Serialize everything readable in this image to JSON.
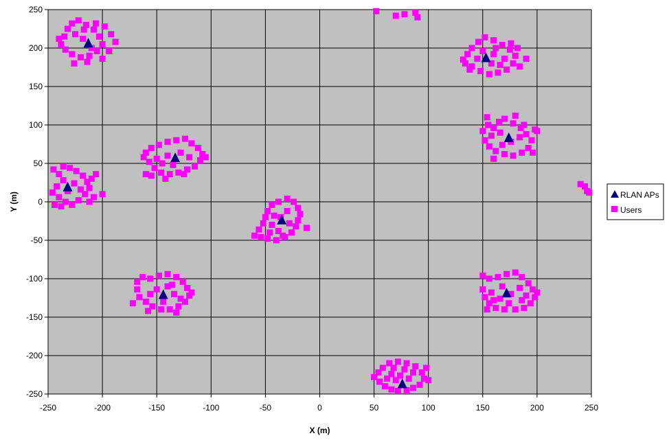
{
  "chart_data": {
    "type": "scatter",
    "title": "",
    "xlabel": "X (m)",
    "ylabel": "Y (m)",
    "xlim": [
      -250,
      250
    ],
    "ylim": [
      -250,
      250
    ],
    "x_ticks": [
      -250,
      -200,
      -150,
      -100,
      -50,
      0,
      50,
      100,
      150,
      200,
      250
    ],
    "y_ticks": [
      -250,
      -200,
      -150,
      -100,
      -50,
      0,
      50,
      100,
      150,
      200,
      250
    ],
    "grid": true,
    "plot_background": "#c0c0c0",
    "legend_position": "right",
    "series": [
      {
        "name": "RLAN APs",
        "marker": "triangle",
        "color": "#000080",
        "points": [
          [
            -213,
            206
          ],
          [
            153,
            187
          ],
          [
            174,
            83
          ],
          [
            -133,
            57
          ],
          [
            -232,
            19
          ],
          [
            -35,
            -24
          ],
          [
            -144,
            -121
          ],
          [
            172,
            -119
          ],
          [
            76,
            -237
          ]
        ]
      },
      {
        "name": "Users",
        "marker": "square",
        "color": "#ff00ff",
        "points": [
          [
            -238,
            205
          ],
          [
            -235,
            215
          ],
          [
            -232,
            225
          ],
          [
            -228,
            232
          ],
          [
            -222,
            236
          ],
          [
            -215,
            230
          ],
          [
            -208,
            224
          ],
          [
            -203,
            215
          ],
          [
            -200,
            205
          ],
          [
            -205,
            196
          ],
          [
            -212,
            190
          ],
          [
            -220,
            188
          ],
          [
            -228,
            192
          ],
          [
            -234,
            198
          ],
          [
            -225,
            218
          ],
          [
            -218,
            212
          ],
          [
            -210,
            200
          ],
          [
            -198,
            228
          ],
          [
            -192,
            218
          ],
          [
            -188,
            208
          ],
          [
            -194,
            196
          ],
          [
            -200,
            186
          ],
          [
            -214,
            182
          ],
          [
            -226,
            180
          ],
          [
            -240,
            212
          ],
          [
            -217,
            224
          ],
          [
            -206,
            232
          ],
          [
            52,
            248
          ],
          [
            70,
            242
          ],
          [
            88,
            246
          ],
          [
            90,
            240
          ],
          [
            78,
            244
          ],
          [
            132,
            185
          ],
          [
            136,
            192
          ],
          [
            140,
            200
          ],
          [
            146,
            208
          ],
          [
            152,
            214
          ],
          [
            160,
            210
          ],
          [
            168,
            204
          ],
          [
            175,
            198
          ],
          [
            180,
            190
          ],
          [
            178,
            180
          ],
          [
            172,
            172
          ],
          [
            164,
            168
          ],
          [
            156,
            166
          ],
          [
            148,
            170
          ],
          [
            140,
            176
          ],
          [
            134,
            180
          ],
          [
            150,
            196
          ],
          [
            160,
            192
          ],
          [
            170,
            186
          ],
          [
            158,
            180
          ],
          [
            145,
            186
          ],
          [
            182,
            200
          ],
          [
            176,
            206
          ],
          [
            138,
            172
          ],
          [
            190,
            186
          ],
          [
            184,
            176
          ],
          [
            162,
            200
          ],
          [
            166,
            178
          ],
          [
            150,
            92
          ],
          [
            155,
            100
          ],
          [
            160,
            96
          ],
          [
            165,
            104
          ],
          [
            170,
            108
          ],
          [
            178,
            102
          ],
          [
            185,
            96
          ],
          [
            190,
            88
          ],
          [
            195,
            80
          ],
          [
            192,
            70
          ],
          [
            186,
            64
          ],
          [
            178,
            60
          ],
          [
            170,
            62
          ],
          [
            162,
            66
          ],
          [
            156,
            72
          ],
          [
            152,
            80
          ],
          [
            158,
            86
          ],
          [
            166,
            90
          ],
          [
            176,
            78
          ],
          [
            184,
            84
          ],
          [
            198,
            94
          ],
          [
            200,
            92
          ],
          [
            168,
            74
          ],
          [
            160,
            56
          ],
          [
            196,
            64
          ],
          [
            154,
            110
          ],
          [
            180,
            112
          ],
          [
            188,
            100
          ],
          [
            -160,
            64
          ],
          [
            -155,
            70
          ],
          [
            -148,
            74
          ],
          [
            -140,
            78
          ],
          [
            -132,
            80
          ],
          [
            -124,
            82
          ],
          [
            -118,
            76
          ],
          [
            -112,
            70
          ],
          [
            -108,
            62
          ],
          [
            -110,
            54
          ],
          [
            -115,
            46
          ],
          [
            -122,
            42
          ],
          [
            -130,
            38
          ],
          [
            -138,
            36
          ],
          [
            -146,
            38
          ],
          [
            -152,
            44
          ],
          [
            -157,
            52
          ],
          [
            -162,
            58
          ],
          [
            -150,
            56
          ],
          [
            -140,
            60
          ],
          [
            -128,
            64
          ],
          [
            -120,
            58
          ],
          [
            -135,
            48
          ],
          [
            -145,
            50
          ],
          [
            -160,
            36
          ],
          [
            -155,
            34
          ],
          [
            -142,
            30
          ],
          [
            -125,
            36
          ],
          [
            -105,
            58
          ],
          [
            -245,
            42
          ],
          [
            -240,
            36
          ],
          [
            -236,
            28
          ],
          [
            -242,
            20
          ],
          [
            -246,
            12
          ],
          [
            -240,
            6
          ],
          [
            -234,
            0
          ],
          [
            -228,
            -4
          ],
          [
            -222,
            2
          ],
          [
            -216,
            10
          ],
          [
            -212,
            18
          ],
          [
            -214,
            26
          ],
          [
            -218,
            34
          ],
          [
            -224,
            40
          ],
          [
            -230,
            44
          ],
          [
            -236,
            46
          ],
          [
            -226,
            24
          ],
          [
            -232,
            14
          ],
          [
            -220,
            16
          ],
          [
            -210,
            30
          ],
          [
            -206,
            36
          ],
          [
            -200,
            10
          ],
          [
            -244,
            -4
          ],
          [
            -238,
            -6
          ],
          [
            -212,
            0
          ],
          [
            -208,
            6
          ],
          [
            240,
            23
          ],
          [
            244,
            20
          ],
          [
            246,
            14
          ],
          [
            248,
            12
          ],
          [
            -60,
            -44
          ],
          [
            -56,
            -36
          ],
          [
            -52,
            -28
          ],
          [
            -50,
            -20
          ],
          [
            -48,
            -12
          ],
          [
            -44,
            -4
          ],
          [
            -38,
            0
          ],
          [
            -30,
            4
          ],
          [
            -24,
            0
          ],
          [
            -20,
            -8
          ],
          [
            -18,
            -16
          ],
          [
            -20,
            -24
          ],
          [
            -22,
            -32
          ],
          [
            -26,
            -40
          ],
          [
            -32,
            -46
          ],
          [
            -40,
            -50
          ],
          [
            -48,
            -48
          ],
          [
            -54,
            -46
          ],
          [
            -44,
            -30
          ],
          [
            -36,
            -20
          ],
          [
            -28,
            -28
          ],
          [
            -38,
            -38
          ],
          [
            -12,
            -34
          ],
          [
            -30,
            -12
          ],
          [
            -46,
            -40
          ],
          [
            -34,
            -44
          ],
          [
            -42,
            -18
          ],
          [
            -168,
            -104
          ],
          [
            -163,
            -98
          ],
          [
            -156,
            -100
          ],
          [
            -148,
            -96
          ],
          [
            -140,
            -94
          ],
          [
            -132,
            -98
          ],
          [
            -126,
            -104
          ],
          [
            -122,
            -112
          ],
          [
            -120,
            -122
          ],
          [
            -124,
            -130
          ],
          [
            -130,
            -136
          ],
          [
            -138,
            -140
          ],
          [
            -146,
            -140
          ],
          [
            -154,
            -136
          ],
          [
            -160,
            -130
          ],
          [
            -166,
            -124
          ],
          [
            -168,
            -114
          ],
          [
            -150,
            -114
          ],
          [
            -140,
            -110
          ],
          [
            -134,
            -120
          ],
          [
            -156,
            -120
          ],
          [
            -144,
            -130
          ],
          [
            -128,
            -126
          ],
          [
            -172,
            -132
          ],
          [
            -158,
            -142
          ],
          [
            -132,
            -144
          ],
          [
            -118,
            -118
          ],
          [
            -136,
            -108
          ],
          [
            150,
            -96
          ],
          [
            156,
            -100
          ],
          [
            164,
            -98
          ],
          [
            172,
            -94
          ],
          [
            180,
            -92
          ],
          [
            186,
            -98
          ],
          [
            192,
            -106
          ],
          [
            196,
            -114
          ],
          [
            198,
            -124
          ],
          [
            194,
            -132
          ],
          [
            188,
            -138
          ],
          [
            180,
            -140
          ],
          [
            170,
            -140
          ],
          [
            162,
            -138
          ],
          [
            156,
            -132
          ],
          [
            152,
            -124
          ],
          [
            150,
            -114
          ],
          [
            158,
            -118
          ],
          [
            168,
            -110
          ],
          [
            176,
            -120
          ],
          [
            184,
            -112
          ],
          [
            160,
            -128
          ],
          [
            174,
            -132
          ],
          [
            190,
            -122
          ],
          [
            200,
            -118
          ],
          [
            154,
            -140
          ],
          [
            166,
            -126
          ],
          [
            186,
            -128
          ],
          [
            50,
            -228
          ],
          [
            55,
            -234
          ],
          [
            60,
            -240
          ],
          [
            66,
            -244
          ],
          [
            72,
            -246
          ],
          [
            80,
            -245
          ],
          [
            86,
            -242
          ],
          [
            92,
            -238
          ],
          [
            96,
            -230
          ],
          [
            94,
            -222
          ],
          [
            88,
            -214
          ],
          [
            80,
            -210
          ],
          [
            72,
            -208
          ],
          [
            64,
            -210
          ],
          [
            58,
            -216
          ],
          [
            54,
            -222
          ],
          [
            66,
            -224
          ],
          [
            74,
            -226
          ],
          [
            82,
            -230
          ],
          [
            70,
            -232
          ],
          [
            86,
            -222
          ],
          [
            62,
            -230
          ],
          [
            100,
            -232
          ],
          [
            98,
            -216
          ],
          [
            68,
            -216
          ],
          [
            78,
            -218
          ]
        ]
      }
    ]
  }
}
